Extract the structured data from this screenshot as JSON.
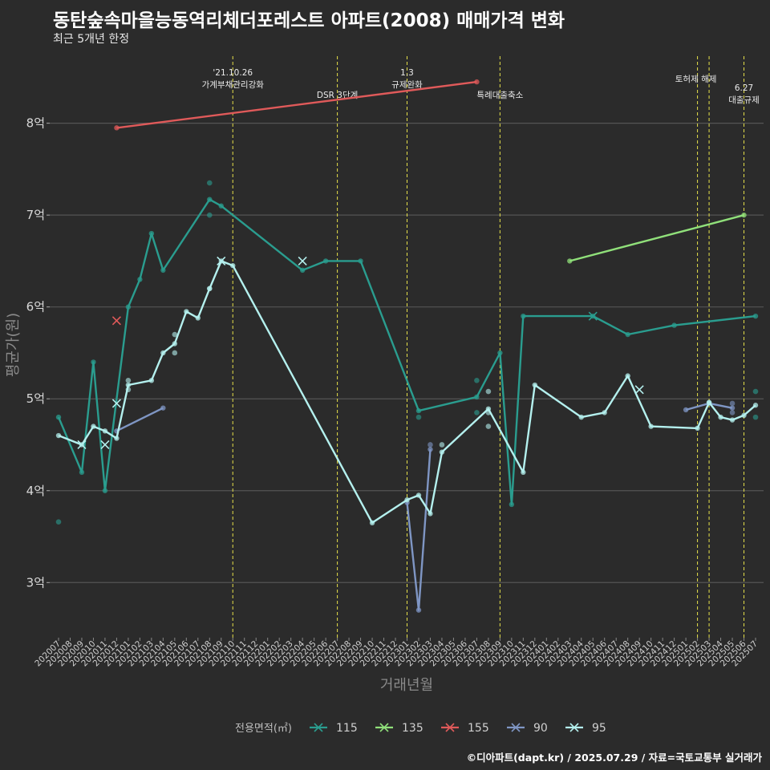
{
  "title": "동탄숲속마을능동역리체더포레스트 아파트(2008) 매매가격 변화",
  "subtitle": "최근 5개년 한정",
  "caption": "©디아파트(dapt.kr) / 2025.07.29 / 자료=국토교통부 실거래가",
  "chart_data": {
    "type": "line",
    "xlabel": "거래년월",
    "ylabel": "평균가(원)",
    "ylim": [
      2.4,
      8.8
    ],
    "y_ticks": [
      3,
      4,
      5,
      6,
      7,
      8
    ],
    "y_tick_labels": [
      "3억",
      "4억",
      "5억",
      "6억",
      "7억",
      "8억"
    ],
    "categories": [
      "202007",
      "202008",
      "202009",
      "202010",
      "202011",
      "202012",
      "202101",
      "202102",
      "202103",
      "202104",
      "202105",
      "202106",
      "202107",
      "202108",
      "202109",
      "202110",
      "202111",
      "202112",
      "202201",
      "202202",
      "202203",
      "202204",
      "202205",
      "202206",
      "202207",
      "202208",
      "202209",
      "202210",
      "202211",
      "202212",
      "202301",
      "202302",
      "202303",
      "202304",
      "202305",
      "202306",
      "202307",
      "202308",
      "202309",
      "202310",
      "202311",
      "202312",
      "202401",
      "202402",
      "202403",
      "202404",
      "202405",
      "202406",
      "202407",
      "202408",
      "202409",
      "202410",
      "202411",
      "202412",
      "202501",
      "202502",
      "202503",
      "202504",
      "202505",
      "202506",
      "202507"
    ],
    "events": [
      {
        "x": "202110",
        "label": "'21.10.26\n가계부채관리강화"
      },
      {
        "x": "202207",
        "label": "DSR 3단계"
      },
      {
        "x": "202301",
        "label": "1.3\n규제완화"
      },
      {
        "x": "202309",
        "label": "특례대출축소"
      },
      {
        "x": "202502",
        "label": "토허제 해제"
      },
      {
        "x": "202503",
        "label": ""
      },
      {
        "x": "202506",
        "label": "6.27\n대출규제"
      }
    ],
    "legend_title": "전용면적(㎡)",
    "series": [
      {
        "name": "115",
        "color": "#2a9d8f",
        "points": [
          [
            "202007",
            4.8
          ],
          [
            "202009",
            4.2
          ],
          [
            "202010",
            5.4
          ],
          [
            "202011",
            4.0
          ],
          [
            "202101",
            6.0
          ],
          [
            "202102",
            6.3
          ],
          [
            "202103",
            6.8
          ],
          [
            "202104",
            6.4
          ],
          [
            "202108",
            7.17
          ],
          [
            "202109",
            7.1
          ],
          [
            "202204",
            6.4
          ],
          [
            "202206",
            6.5
          ],
          [
            "202209",
            6.5
          ],
          [
            "202302",
            4.87
          ],
          [
            "202307",
            5.02
          ],
          [
            "202309",
            5.5
          ],
          [
            "202310",
            3.85
          ],
          [
            "202311",
            5.9
          ],
          [
            "202405",
            5.9
          ],
          [
            "202408",
            5.7
          ],
          [
            "202412",
            5.8
          ],
          [
            "202507",
            5.9
          ]
        ],
        "scatter": [
          [
            "202007",
            3.66
          ],
          [
            "202108",
            7.35
          ],
          [
            "202108",
            7.0
          ],
          [
            "202302",
            4.8
          ],
          [
            "202307",
            5.2
          ],
          [
            "202307",
            4.85
          ],
          [
            "202507",
            5.08
          ],
          [
            "202507",
            4.8
          ]
        ],
        "crosses": [
          [
            "202405",
            5.9
          ]
        ]
      },
      {
        "name": "135",
        "color": "#90e07a",
        "points": [
          [
            "202403",
            6.5
          ],
          [
            "202506",
            7.0
          ]
        ],
        "scatter": [],
        "crosses": []
      },
      {
        "name": "155",
        "color": "#e05a5a",
        "points": [
          [
            "202012",
            7.95
          ],
          [
            "202307",
            8.45
          ]
        ],
        "scatter": [],
        "crosses": [
          [
            "202012",
            5.85
          ]
        ]
      },
      {
        "name": "90",
        "color": "#7f96c4",
        "points": [
          [
            "202012",
            4.65
          ],
          [
            "202104",
            4.9
          ]
        ],
        "points2": [
          [
            "202301",
            3.87
          ],
          [
            "202302",
            2.7
          ],
          [
            "202303",
            4.45
          ]
        ],
        "points3": [
          [
            "202501",
            4.88
          ],
          [
            "202503",
            4.95
          ],
          [
            "202505",
            4.9
          ]
        ],
        "scatter": [
          [
            "202303",
            4.5
          ],
          [
            "202505",
            4.95
          ],
          [
            "202505",
            4.85
          ]
        ],
        "crosses": []
      },
      {
        "name": "95",
        "color": "#b4f0ee",
        "points": [
          [
            "202007",
            4.6
          ],
          [
            "202009",
            4.5
          ],
          [
            "202010",
            4.7
          ],
          [
            "202011",
            4.65
          ],
          [
            "202012",
            4.57
          ],
          [
            "202101",
            5.15
          ],
          [
            "202103",
            5.2
          ],
          [
            "202104",
            5.5
          ],
          [
            "202105",
            5.6
          ],
          [
            "202106",
            5.95
          ],
          [
            "202107",
            5.88
          ],
          [
            "202108",
            6.2
          ],
          [
            "202109",
            6.5
          ],
          [
            "202110",
            6.45
          ],
          [
            "202210",
            3.65
          ],
          [
            "202301",
            3.9
          ],
          [
            "202302",
            3.95
          ],
          [
            "202303",
            3.75
          ],
          [
            "202304",
            4.42
          ],
          [
            "202308",
            4.89
          ],
          [
            "202311",
            4.2
          ],
          [
            "202312",
            5.15
          ],
          [
            "202404",
            4.8
          ],
          [
            "202406",
            4.85
          ],
          [
            "202408",
            5.25
          ],
          [
            "202410",
            4.7
          ],
          [
            "202502",
            4.68
          ],
          [
            "202503",
            4.96
          ],
          [
            "202504",
            4.8
          ],
          [
            "202505",
            4.77
          ],
          [
            "202506",
            4.82
          ],
          [
            "202507",
            4.93
          ]
        ],
        "scatter": [
          [
            "202101",
            5.1
          ],
          [
            "202101",
            5.2
          ],
          [
            "202105",
            5.5
          ],
          [
            "202105",
            5.7
          ],
          [
            "202108",
            6.2
          ],
          [
            "202304",
            4.5
          ],
          [
            "202308",
            5.08
          ],
          [
            "202308",
            4.7
          ],
          [
            "202308",
            4.85
          ],
          [
            "202503",
            4.96
          ]
        ],
        "crosses": [
          [
            "202009",
            4.5
          ],
          [
            "202011",
            4.5
          ],
          [
            "202012",
            4.95
          ],
          [
            "202109",
            6.5
          ],
          [
            "202204",
            6.5
          ],
          [
            "202409",
            5.1
          ]
        ]
      }
    ]
  }
}
